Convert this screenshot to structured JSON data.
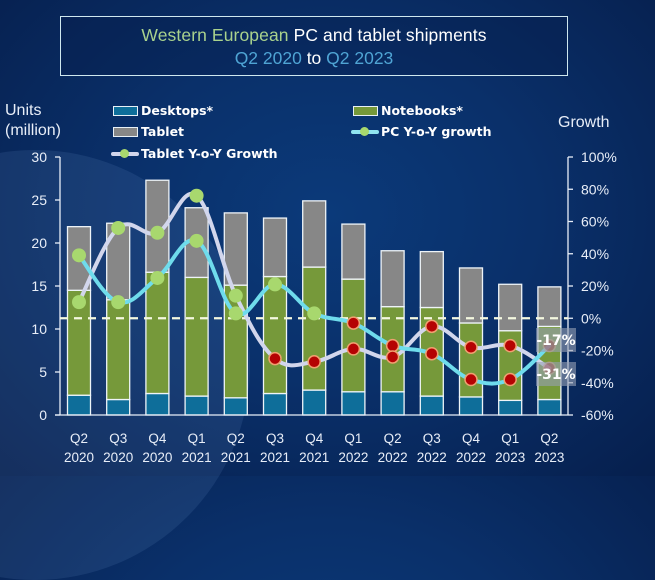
{
  "title": {
    "part1": "Western European",
    "part2": " PC and tablet shipments",
    "range_start": "Q2 2020",
    "range_to": " to ",
    "range_end": "Q2 2023"
  },
  "colors": {
    "desktops": "#0e6e9a",
    "notebooks": "#76993a",
    "tablet": "#878787",
    "pc_growth_line": "#6fdcec",
    "tablet_growth_line": "#d2d6ec",
    "positive_marker": "#a8d86e",
    "negative_marker": "#b50303",
    "negative_marker_border": "#f0a070",
    "zero_line": "#f4f8e0"
  },
  "chart_data": {
    "type": "bar",
    "stacked": true,
    "title": "Western European PC and tablet shipments Q2 2020 to Q2 2023",
    "xlabel": "",
    "ylabel": "Units (million)",
    "y2label": "Growth",
    "ylim": [
      0,
      30
    ],
    "yticks": [
      0,
      5,
      10,
      15,
      20,
      25,
      30
    ],
    "y2lim": [
      -60,
      100
    ],
    "y2ticks": [
      -60,
      -40,
      -20,
      0,
      20,
      40,
      60,
      80,
      100
    ],
    "y2tick_suffix": "%",
    "grid": false,
    "legend_position": "top",
    "categories": [
      [
        "Q2",
        "2020"
      ],
      [
        "Q3",
        "2020"
      ],
      [
        "Q4",
        "2020"
      ],
      [
        "Q1",
        "2021"
      ],
      [
        "Q2",
        "2021"
      ],
      [
        "Q3",
        "2021"
      ],
      [
        "Q4",
        "2021"
      ],
      [
        "Q1",
        "2022"
      ],
      [
        "Q2",
        "2022"
      ],
      [
        "Q3",
        "2022"
      ],
      [
        "Q4",
        "2022"
      ],
      [
        "Q1",
        "2023"
      ],
      [
        "Q2",
        "2023"
      ]
    ],
    "series": [
      {
        "name": "Desktops*",
        "type": "bar",
        "axis": "left",
        "values": [
          2.3,
          1.8,
          2.5,
          2.2,
          2.0,
          2.5,
          2.9,
          2.7,
          2.7,
          2.2,
          2.1,
          1.7,
          1.8
        ]
      },
      {
        "name": "Notebooks*",
        "type": "bar",
        "axis": "left",
        "values": [
          12.2,
          11.6,
          14.1,
          13.8,
          13.1,
          13.6,
          14.3,
          13.1,
          9.9,
          10.3,
          8.6,
          8.1,
          8.5
        ]
      },
      {
        "name": "Tablet",
        "type": "bar",
        "axis": "left",
        "values": [
          7.4,
          8.9,
          10.7,
          8.1,
          8.4,
          6.8,
          7.7,
          6.4,
          6.5,
          6.5,
          6.4,
          5.4,
          4.6
        ]
      },
      {
        "name": "PC Y-o-Y growth",
        "type": "line",
        "axis": "right",
        "unit": "%",
        "values": [
          39,
          10,
          25,
          48,
          3,
          21,
          3,
          -3,
          -17,
          -22,
          -38,
          -38,
          -17
        ]
      },
      {
        "name": "Tablet Y-o-Y Growth",
        "type": "line",
        "axis": "right",
        "unit": "%",
        "values": [
          10,
          56,
          53,
          76,
          14,
          -25,
          -27,
          -19,
          -24,
          -5,
          -18,
          -17,
          -31
        ]
      }
    ],
    "annotations": [
      {
        "text": "-17%",
        "series": "PC Y-o-Y growth",
        "category": "Q2 2023"
      },
      {
        "text": "-31%",
        "series": "Tablet Y-o-Y Growth",
        "category": "Q2 2023"
      }
    ],
    "reference_line": {
      "axis": "right",
      "value": 0,
      "style": "dashed"
    }
  },
  "axis_titles": {
    "left_line1": "Units",
    "left_line2": "(million)",
    "right": "Growth"
  },
  "legend": {
    "desktops": "Desktops*",
    "notebooks": "Notebooks*",
    "tablet": "Tablet",
    "pc_growth": "PC Y-o-Y growth",
    "tablet_growth": "Tablet Y-o-Y Growth"
  }
}
